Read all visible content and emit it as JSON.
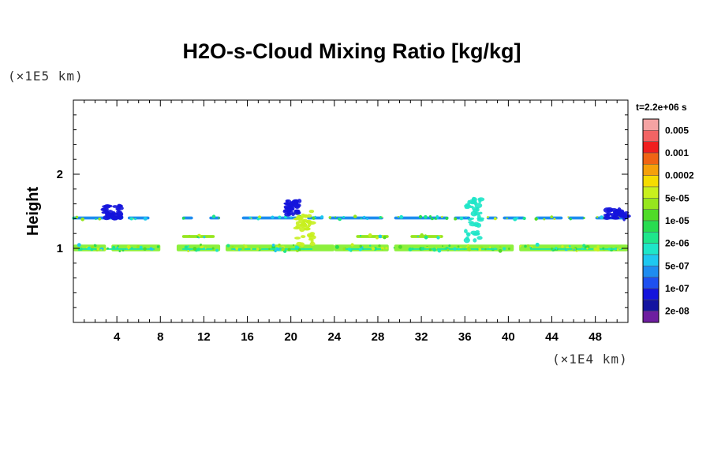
{
  "chart_data": {
    "type": "heatmap",
    "title": "H2O-s-Cloud Mixing Ratio [kg/kg]",
    "xlabel": "",
    "ylabel": "Height",
    "x_scale_label": "(×1E4 km)",
    "y_scale_label": "(×1E5 km)",
    "time_label": "t=2.2e+06 s",
    "xlim": [
      0,
      51
    ],
    "ylim": [
      0,
      3
    ],
    "x_ticks": [
      4,
      8,
      12,
      16,
      20,
      24,
      28,
      32,
      36,
      40,
      44,
      48
    ],
    "x_tick_labels": [
      "4",
      "8",
      "12",
      "16",
      "20",
      "24",
      "28",
      "32",
      "36",
      "40",
      "44",
      "48"
    ],
    "y_ticks": [
      1,
      2
    ],
    "y_tick_labels": [
      "1",
      "2"
    ],
    "colorbar": {
      "labels": [
        "0.005",
        "0.001",
        "0.0002",
        "5e-05",
        "1e-05",
        "2e-06",
        "5e-07",
        "1e-07",
        "2e-08"
      ],
      "colors": [
        "#f5a3a3",
        "#f26464",
        "#f01e1e",
        "#f06414",
        "#f5a00a",
        "#f5dc00",
        "#c8f01e",
        "#96e61e",
        "#50dc28",
        "#28dc50",
        "#1ee68c",
        "#1ee6c8",
        "#1ec8f0",
        "#1e8cf0",
        "#1e50f0",
        "#1414dc",
        "#1414a0",
        "#6e1ea0"
      ]
    },
    "bands": [
      {
        "name": "lower",
        "color": "#8cf03c",
        "segments": [
          [
            0,
            3
          ],
          [
            3.5,
            8
          ],
          [
            9.5,
            13.5
          ],
          [
            14,
            24
          ],
          [
            24,
            29
          ],
          [
            29.5,
            40.5
          ],
          [
            41,
            51
          ]
        ],
        "y": [
          0.96,
          1.05
        ]
      },
      {
        "name": "lower-core",
        "color": "#1ee6a0",
        "segments": [
          [
            0.5,
            7.5
          ],
          [
            10,
            13
          ],
          [
            14.5,
            22
          ],
          [
            25,
            28.5
          ],
          [
            31,
            39
          ],
          [
            42,
            50.5
          ]
        ],
        "y": [
          0.98,
          1.0
        ]
      },
      {
        "name": "middle",
        "color": "#96e61e",
        "segments": [
          [
            10,
            13
          ],
          [
            26,
            29
          ],
          [
            31,
            34
          ]
        ],
        "y": [
          1.14,
          1.18
        ]
      },
      {
        "name": "upper",
        "color": "#1e8cf0",
        "segments": [
          [
            0,
            4.5
          ],
          [
            5,
            7
          ],
          [
            10,
            11
          ],
          [
            12.5,
            13.5
          ],
          [
            15.5,
            21
          ],
          [
            21.5,
            23
          ],
          [
            23.5,
            28.5
          ],
          [
            29.5,
            34.5
          ],
          [
            35,
            36.5
          ],
          [
            38,
            39
          ],
          [
            39.5,
            41.5
          ],
          [
            42.5,
            45
          ],
          [
            45.5,
            47
          ],
          [
            48,
            51
          ]
        ],
        "y": [
          1.39,
          1.43
        ]
      }
    ],
    "plumes": [
      {
        "x": [
          20.5,
          22
        ],
        "y": [
          1.03,
          1.5
        ],
        "color": "#c8f01e"
      },
      {
        "x": [
          36,
          37.5
        ],
        "y": [
          1.06,
          1.68
        ],
        "color": "#1ee6c8"
      },
      {
        "x": [
          2.8,
          4.4
        ],
        "y": [
          1.4,
          1.58
        ],
        "color": "#1414dc"
      },
      {
        "x": [
          19.6,
          20.8
        ],
        "y": [
          1.45,
          1.64
        ],
        "color": "#1414dc"
      },
      {
        "x": [
          49,
          51
        ],
        "y": [
          1.4,
          1.52
        ],
        "color": "#1414dc"
      }
    ]
  }
}
